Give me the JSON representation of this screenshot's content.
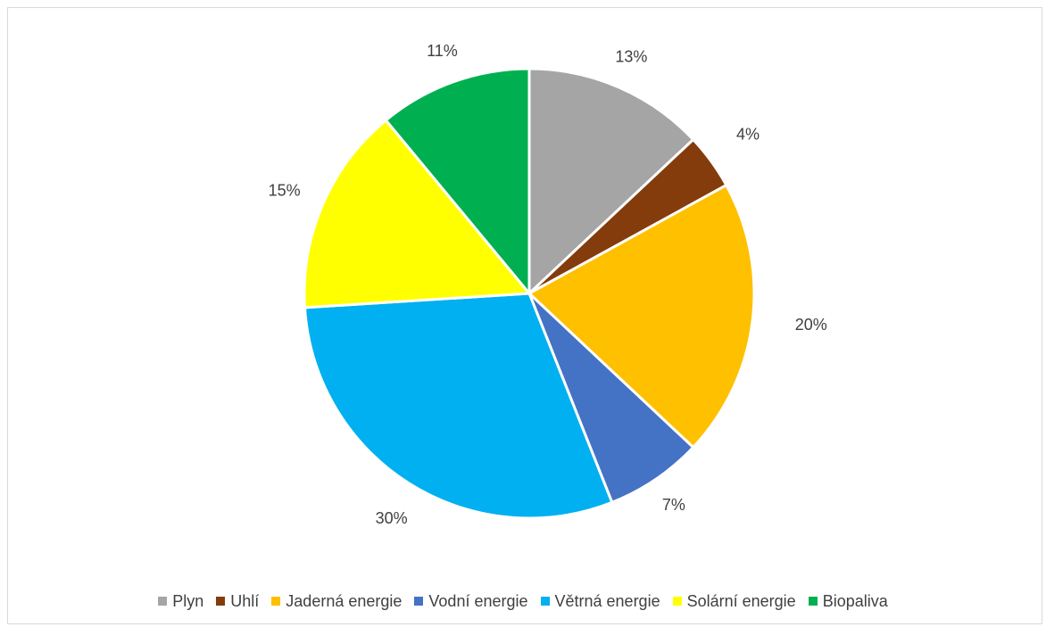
{
  "chart_data": {
    "type": "pie",
    "title": "",
    "categories": [
      "Plyn",
      "Uhlí",
      "Jaderná energie",
      "Vodní energie",
      "Větrná energie",
      "Solární energie",
      "Biopaliva"
    ],
    "values": [
      13,
      4,
      20,
      7,
      30,
      15,
      11
    ],
    "labels": [
      "13%",
      "4%",
      "20%",
      "7%",
      "30%",
      "15%",
      "11%"
    ],
    "colors": [
      "#A5A5A5",
      "#843C0C",
      "#FFC000",
      "#4472C4",
      "#00B0F0",
      "#FFFF00",
      "#00B050"
    ],
    "start_angle_deg": 0,
    "direction": "clockwise",
    "legend_position": "bottom"
  }
}
